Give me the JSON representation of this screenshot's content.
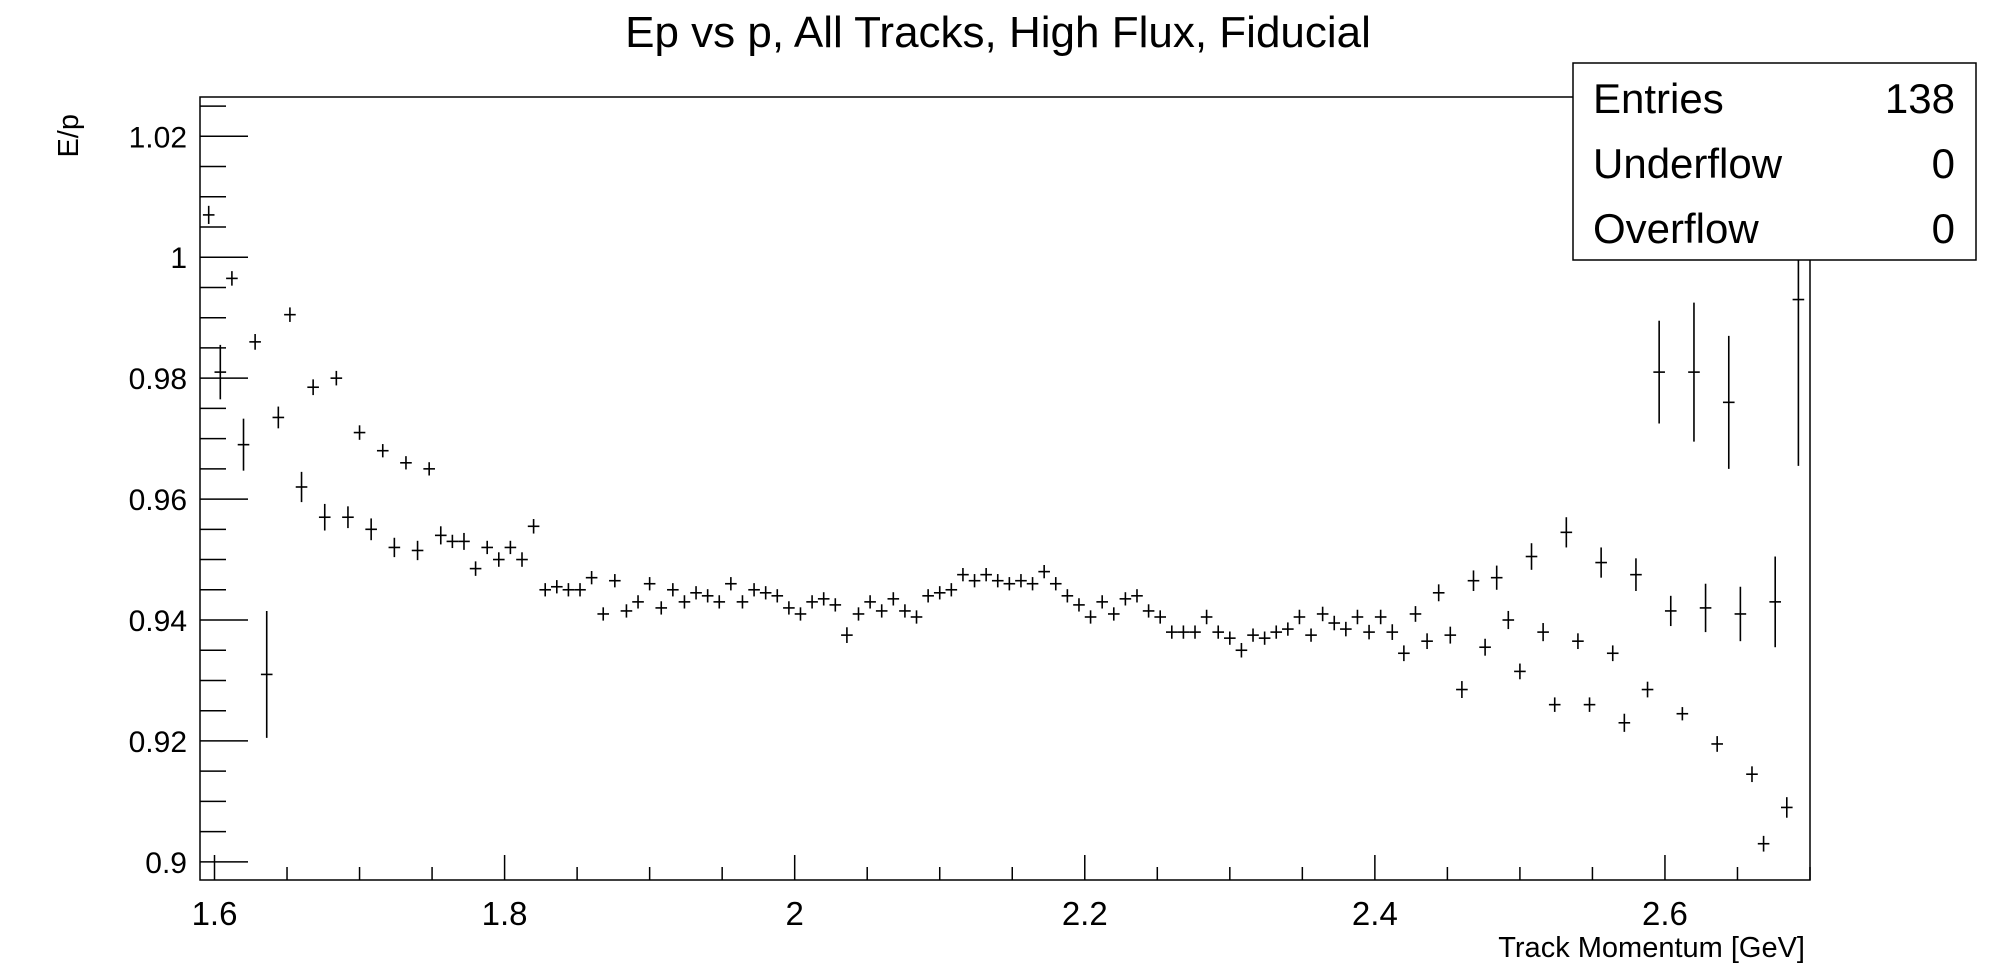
{
  "chart_data": {
    "type": "scatter",
    "title": "Ep vs p, All Tracks, High Flux, Fiducial",
    "xlabel": "Track Momentum [GeV]",
    "ylabel": "E/p",
    "xlim": [
      1.59,
      2.7
    ],
    "ylim": [
      0.897,
      1.0265
    ],
    "xticks": [
      1.6,
      1.8,
      2,
      2.2,
      2.4,
      2.6
    ],
    "xtick_labels": [
      "1.6",
      "1.8",
      "2",
      "2.2",
      "2.4",
      "2.6"
    ],
    "yticks": [
      0.9,
      0.92,
      0.94,
      0.96,
      0.98,
      1.0,
      1.02
    ],
    "ytick_labels": [
      "0.9",
      "0.92",
      "0.94",
      "0.96",
      "0.98",
      "1",
      "1.02"
    ],
    "grid": false,
    "marker": "cross-with-error-bars",
    "stats": {
      "rows": [
        {
          "label": "Entries",
          "value": "138"
        },
        {
          "label": "Underflow",
          "value": "0"
        },
        {
          "label": "Overflow",
          "value": "0"
        }
      ]
    },
    "series": [
      {
        "x": [
          1.596,
          1.604,
          1.612,
          1.62,
          1.628,
          1.636,
          1.644,
          1.652,
          1.66,
          1.668,
          1.676,
          1.684,
          1.692,
          1.7,
          1.708,
          1.716,
          1.724,
          1.732,
          1.74,
          1.748,
          1.756,
          1.764,
          1.772,
          1.78,
          1.788,
          1.796,
          1.804,
          1.812,
          1.82,
          1.828,
          1.836,
          1.844,
          1.852,
          1.86,
          1.868,
          1.876,
          1.884,
          1.892,
          1.9,
          1.908,
          1.916,
          1.924,
          1.932,
          1.94,
          1.948,
          1.956,
          1.964,
          1.972,
          1.98,
          1.988,
          1.996,
          2.004,
          2.012,
          2.02,
          2.028,
          2.036,
          2.044,
          2.052,
          2.06,
          2.068,
          2.076,
          2.084,
          2.092,
          2.1,
          2.108,
          2.116,
          2.124,
          2.132,
          2.14,
          2.148,
          2.156,
          2.164,
          2.172,
          2.18,
          2.188,
          2.196,
          2.204,
          2.212,
          2.22,
          2.228,
          2.236,
          2.244,
          2.252,
          2.26,
          2.268,
          2.276,
          2.284,
          2.292,
          2.3,
          2.308,
          2.316,
          2.324,
          2.332,
          2.34,
          2.348,
          2.356,
          2.364,
          2.372,
          2.38,
          2.388,
          2.396,
          2.404,
          2.412,
          2.42,
          2.428,
          2.436,
          2.444,
          2.452,
          2.46,
          2.468,
          2.476,
          2.484,
          2.492,
          2.5,
          2.508,
          2.516,
          2.524,
          2.532,
          2.54,
          2.548,
          2.556,
          2.564,
          2.572,
          2.58,
          2.588,
          2.596,
          2.604,
          2.612,
          2.62,
          2.628,
          2.636,
          2.644,
          2.652,
          2.66,
          2.668,
          2.676,
          2.684,
          2.692
        ],
        "y": [
          1.007,
          0.981,
          0.9965,
          0.969,
          0.986,
          0.931,
          0.9735,
          0.9905,
          0.962,
          0.9785,
          0.957,
          0.98,
          0.957,
          0.971,
          0.955,
          0.968,
          0.952,
          0.966,
          0.9515,
          0.965,
          0.954,
          0.953,
          0.953,
          0.9485,
          0.952,
          0.95,
          0.952,
          0.95,
          0.9555,
          0.945,
          0.9455,
          0.945,
          0.945,
          0.947,
          0.941,
          0.9465,
          0.9415,
          0.943,
          0.946,
          0.942,
          0.945,
          0.943,
          0.9445,
          0.944,
          0.943,
          0.946,
          0.943,
          0.945,
          0.9445,
          0.944,
          0.942,
          0.941,
          0.943,
          0.9435,
          0.9425,
          0.9375,
          0.941,
          0.943,
          0.9415,
          0.9435,
          0.9415,
          0.9405,
          0.944,
          0.9445,
          0.945,
          0.9475,
          0.9465,
          0.9475,
          0.9465,
          0.946,
          0.9465,
          0.946,
          0.948,
          0.946,
          0.944,
          0.9425,
          0.9405,
          0.943,
          0.941,
          0.9435,
          0.944,
          0.9415,
          0.9405,
          0.938,
          0.938,
          0.938,
          0.9405,
          0.938,
          0.937,
          0.935,
          0.9375,
          0.937,
          0.938,
          0.9385,
          0.9405,
          0.9375,
          0.941,
          0.9395,
          0.9385,
          0.9405,
          0.938,
          0.9405,
          0.938,
          0.9345,
          0.941,
          0.9365,
          0.9445,
          0.9375,
          0.9285,
          0.9465,
          0.9355,
          0.947,
          0.94,
          0.9315,
          0.9505,
          0.938,
          0.926,
          0.9545,
          0.9365,
          0.926,
          0.9495,
          0.9345,
          0.923,
          0.9475,
          0.9285,
          0.981,
          0.9415,
          0.9245,
          0.981,
          0.942,
          0.9195,
          0.976,
          0.941,
          0.9145,
          0.903,
          0.943,
          0.909,
          0.993
        ],
        "yerr": [
          0.0015,
          0.0045,
          0.0012,
          0.0043,
          0.0013,
          0.0105,
          0.0018,
          0.0012,
          0.0025,
          0.0013,
          0.0022,
          0.0012,
          0.0018,
          0.0012,
          0.0018,
          0.0011,
          0.0016,
          0.0011,
          0.0016,
          0.0011,
          0.0015,
          0.0011,
          0.0014,
          0.0012,
          0.0011,
          0.0012,
          0.0011,
          0.0012,
          0.0012,
          0.0011,
          0.0011,
          0.0011,
          0.0011,
          0.0011,
          0.0011,
          0.0011,
          0.0011,
          0.0011,
          0.0011,
          0.0011,
          0.0011,
          0.0011,
          0.0011,
          0.0011,
          0.0011,
          0.0011,
          0.0011,
          0.0011,
          0.0011,
          0.0011,
          0.0011,
          0.0011,
          0.0011,
          0.0011,
          0.0011,
          0.0013,
          0.0011,
          0.0011,
          0.0011,
          0.0011,
          0.0011,
          0.0011,
          0.0011,
          0.0011,
          0.0011,
          0.0011,
          0.0011,
          0.0011,
          0.0011,
          0.0011,
          0.0011,
          0.0011,
          0.0011,
          0.0011,
          0.0011,
          0.0011,
          0.0011,
          0.0011,
          0.0011,
          0.0011,
          0.0011,
          0.0011,
          0.0011,
          0.0011,
          0.0011,
          0.0011,
          0.0012,
          0.0011,
          0.0011,
          0.0012,
          0.0011,
          0.0011,
          0.0011,
          0.0011,
          0.0012,
          0.0011,
          0.0012,
          0.0012,
          0.0012,
          0.0012,
          0.0012,
          0.0012,
          0.0013,
          0.0013,
          0.0013,
          0.0013,
          0.0014,
          0.0014,
          0.0014,
          0.0017,
          0.0014,
          0.002,
          0.0015,
          0.0013,
          0.0022,
          0.0015,
          0.0012,
          0.0025,
          0.0013,
          0.0012,
          0.0025,
          0.0013,
          0.0015,
          0.0027,
          0.0013,
          0.0085,
          0.0025,
          0.0011,
          0.0115,
          0.004,
          0.0013,
          0.011,
          0.0045,
          0.0013,
          0.0013,
          0.0075,
          0.0017,
          0.0275
        ]
      }
    ]
  }
}
